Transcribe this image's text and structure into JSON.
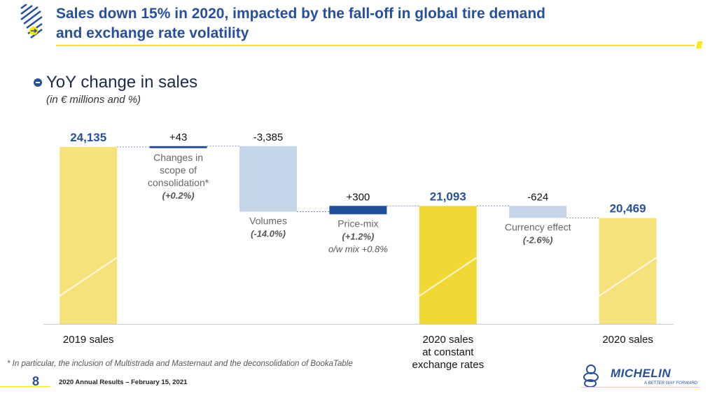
{
  "header": {
    "title_line1": "Sales down 15% in 2020, impacted by the fall-off in global tire demand",
    "title_line2": "and exchange rate volatility",
    "slashes": "////"
  },
  "section": {
    "subtitle": "YoY change in sales",
    "unit_note": "(in € millions and %)"
  },
  "colors": {
    "brand_blue": "#27509b",
    "yellow_bar": "#f5e27a",
    "yellow_bar_strong": "#f1d835",
    "light_blue_bar": "#c5d5e9",
    "dark_blue_bar": "#1f4e9b"
  },
  "chart_data": {
    "type": "waterfall",
    "ylim": [
      15000,
      25500
    ],
    "steps": [
      {
        "kind": "total",
        "value": 24135,
        "label": "24,135",
        "category": "2019 sales",
        "color": "#f5e27a"
      },
      {
        "kind": "delta",
        "start": 24135,
        "value": 43,
        "label": "+43",
        "category": "",
        "desc": [
          "Changes in",
          "scope of",
          "consolidation*"
        ],
        "pct": "(+0.2%)",
        "color": "#27509b"
      },
      {
        "kind": "delta",
        "start": 24178,
        "value": -3385,
        "label": "-3,385",
        "category": "",
        "desc": [
          "Volumes"
        ],
        "pct": "(-14.0%)",
        "color": "#c5d5e9"
      },
      {
        "kind": "delta",
        "start": 20793,
        "value": 300,
        "label": "+300",
        "category": "",
        "desc": [
          "Price-mix"
        ],
        "pct": "(+1.2%)",
        "extra": "o/w mix +0.8%",
        "color": "#1f4e9b"
      },
      {
        "kind": "total",
        "value": 21093,
        "label": "21,093",
        "category": "2020 sales at constant exchange rates",
        "category_lines": [
          "2020 sales",
          "at constant",
          "exchange rates"
        ],
        "color": "#f1d835"
      },
      {
        "kind": "delta",
        "start": 21093,
        "value": -624,
        "label": "-624",
        "category": "",
        "desc": [
          "Currency effect"
        ],
        "pct": "(-2.6%)",
        "color": "#c5d5e9"
      },
      {
        "kind": "total",
        "value": 20469,
        "label": "20,469",
        "category": "2020 sales",
        "color": "#f5e27a"
      }
    ]
  },
  "footer": {
    "footnote": "* In particular, the inclusion of Multistrada and Masternaut and the deconsolidation of BookaTable",
    "page_number": "8",
    "event": "2020 Annual Results – February 15, 2021",
    "brand": "MICHELIN",
    "tagline": "A BETTER WAY FORWARD"
  }
}
